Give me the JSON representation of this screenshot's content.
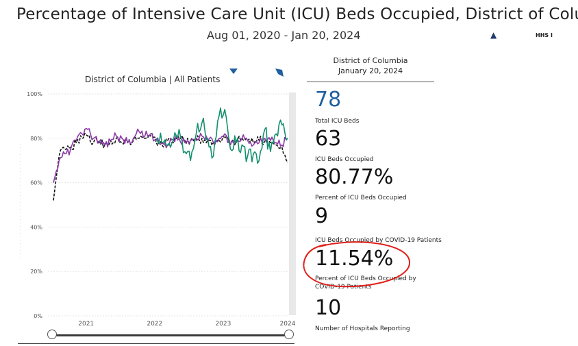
{
  "header": {
    "title": "Percentage of Intensive Care Unit (ICU) Beds Occupied, District of Colu…",
    "date_range": "Aug 01, 2020 - Jan 20, 2024",
    "logo_text": "HHS I"
  },
  "panel": {
    "location": "District of Columbia",
    "date": "January 20, 2024",
    "metrics": [
      {
        "value": "78",
        "label": "Total ICU Beds"
      },
      {
        "value": "63",
        "label": "ICU Beds Occupied"
      },
      {
        "value": "80.77%",
        "label": "Percent of ICU Beds Occupied"
      },
      {
        "value": "9",
        "label": "ICU Beds Occupied by COVID-19 Patients"
      },
      {
        "value": "11.54%",
        "label": "Percent of ICU Beds Occupied by COVID-19 Patients"
      },
      {
        "value": "10",
        "label": "Number of Hospitals Reporting"
      }
    ]
  },
  "colors": {
    "purple": "#8b3aa8",
    "green": "#13906e",
    "black": "#111111",
    "highlight": "#e0201a",
    "value_blue": "#1f5fa0"
  },
  "chart_data": {
    "type": "line",
    "title": "District of Columbia | All Patients",
    "ylabel": "",
    "xlabel": "",
    "ylim": [
      0,
      100
    ],
    "yticks": [
      "0%",
      "20%",
      "40%",
      "60%",
      "80%",
      "100%"
    ],
    "xticks": [
      "2021",
      "2022",
      "2023",
      "2024"
    ],
    "grid": true,
    "x": [
      "2020-08",
      "2020-09",
      "2020-10",
      "2020-11",
      "2020-12",
      "2021-01",
      "2021-02",
      "2021-03",
      "2021-04",
      "2021-05",
      "2021-06",
      "2021-07",
      "2021-08",
      "2021-09",
      "2021-10",
      "2021-11",
      "2021-12",
      "2022-01",
      "2022-02",
      "2022-03",
      "2022-04",
      "2022-05",
      "2022-06",
      "2022-07",
      "2022-08",
      "2022-09",
      "2022-10",
      "2022-11",
      "2022-12",
      "2023-01",
      "2023-02",
      "2023-03",
      "2023-04",
      "2023-05",
      "2023-06",
      "2023-07",
      "2023-08",
      "2023-09",
      "2023-10",
      "2023-11",
      "2023-12",
      "2024-01"
    ],
    "series": [
      {
        "style": "dashed",
        "color": "#111111",
        "values": [
          52,
          72,
          75,
          76,
          78,
          80,
          81,
          78,
          79,
          77,
          79,
          80,
          78,
          78,
          79,
          80,
          80,
          81,
          78,
          77,
          79,
          78,
          80,
          79,
          79,
          79,
          80,
          79,
          78,
          79,
          80,
          78,
          79,
          80,
          79,
          78,
          79,
          79,
          78,
          77,
          76,
          69
        ]
      },
      {
        "style": "solid",
        "color": "#8b3aa8",
        "values": [
          60,
          70,
          73,
          75,
          79,
          82,
          84,
          80,
          78,
          77,
          79,
          81,
          80,
          78,
          80,
          83,
          81,
          82,
          79,
          78,
          77,
          79,
          80,
          78,
          79,
          80,
          81,
          79,
          78,
          80,
          82,
          77,
          78,
          80,
          79,
          77,
          78,
          80,
          79,
          78,
          77,
          80
        ]
      },
      {
        "style": "solid",
        "color": "#13906e",
        "values": [
          null,
          null,
          null,
          null,
          null,
          null,
          null,
          null,
          null,
          null,
          null,
          null,
          null,
          null,
          null,
          null,
          null,
          null,
          80,
          78,
          77,
          79,
          84,
          74,
          70,
          82,
          87,
          80,
          72,
          90,
          93,
          75,
          78,
          77,
          72,
          73,
          70,
          84,
          74,
          82,
          86,
          80
        ]
      }
    ]
  }
}
